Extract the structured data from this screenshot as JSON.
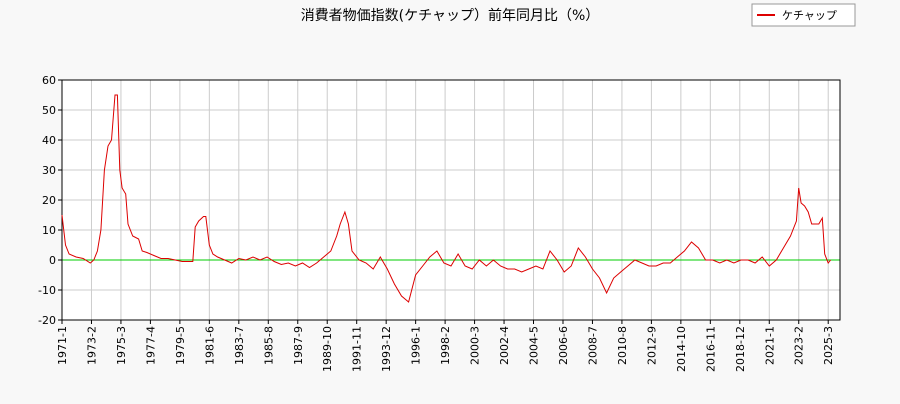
{
  "chart_data": {
    "type": "line",
    "title": "消費者物価指数(ケチャップ）前年同月比（%）",
    "x": [
      "1971-1",
      "1971-4",
      "1971-7",
      "1972-1",
      "1972-7",
      "1973-1",
      "1973-4",
      "1973-7",
      "1973-10",
      "1974-1",
      "1974-4",
      "1974-7",
      "1974-10",
      "1974-12",
      "1975-2",
      "1975-4",
      "1975-7",
      "1975-9",
      "1976-1",
      "1976-6",
      "1976-9",
      "1977-1",
      "1977-7",
      "1978-1",
      "1978-7",
      "1979-1",
      "1979-7",
      "1980-1",
      "1980-4",
      "1980-6",
      "1980-9",
      "1981-1",
      "1981-3",
      "1981-6",
      "1981-9",
      "1982-1",
      "1982-7",
      "1983-1",
      "1983-7",
      "1984-1",
      "1984-7",
      "1985-1",
      "1985-7",
      "1986-1",
      "1986-7",
      "1987-1",
      "1987-7",
      "1988-1",
      "1988-7",
      "1989-1",
      "1989-7",
      "1990-1",
      "1990-6",
      "1990-9",
      "1991-1",
      "1991-4",
      "1991-7",
      "1992-1",
      "1992-7",
      "1993-1",
      "1993-7",
      "1994-1",
      "1994-7",
      "1995-1",
      "1995-7",
      "1996-1",
      "1996-7",
      "1997-1",
      "1997-7",
      "1998-1",
      "1998-7",
      "1999-1",
      "1999-7",
      "2000-1",
      "2000-7",
      "2001-1",
      "2001-7",
      "2002-1",
      "2002-7",
      "2003-1",
      "2003-7",
      "2004-1",
      "2004-7",
      "2005-1",
      "2005-7",
      "2006-1",
      "2006-7",
      "2007-1",
      "2007-7",
      "2008-1",
      "2008-7",
      "2009-1",
      "2009-7",
      "2010-1",
      "2010-7",
      "2011-1",
      "2011-7",
      "2012-1",
      "2012-7",
      "2013-1",
      "2013-7",
      "2014-1",
      "2014-7",
      "2015-1",
      "2015-7",
      "2016-1",
      "2016-7",
      "2017-1",
      "2017-7",
      "2018-1",
      "2018-7",
      "2019-1",
      "2019-7",
      "2020-1",
      "2020-7",
      "2021-1",
      "2021-7",
      "2022-1",
      "2022-7",
      "2022-12",
      "2023-2",
      "2023-4",
      "2023-7",
      "2023-10",
      "2024-1",
      "2024-7",
      "2024-10",
      "2024-12",
      "2025-3",
      "2025-5"
    ],
    "series": [
      {
        "name": "ケチャップ",
        "color": "#dd0000",
        "values": [
          15,
          5,
          2,
          1,
          0.5,
          -1,
          0,
          3,
          10,
          30,
          38,
          40,
          55,
          55,
          30,
          24,
          22,
          12,
          8,
          7,
          3,
          2.5,
          1.5,
          0.5,
          0.5,
          0,
          -0.5,
          -0.5,
          -0.5,
          11,
          13,
          14.5,
          14.5,
          5,
          2,
          1,
          0,
          -1,
          0.5,
          0,
          1,
          0,
          1,
          -0.5,
          -1.5,
          -1,
          -2,
          -1,
          -2.5,
          -1,
          1,
          3,
          8,
          12,
          16,
          12,
          3,
          0,
          -1,
          -3,
          1,
          -3,
          -8,
          -12,
          -14,
          -5,
          -2,
          1,
          3,
          -1,
          -2,
          2,
          -2,
          -3,
          0,
          -2,
          0,
          -2,
          -3,
          -3,
          -4,
          -3,
          -2,
          -3,
          3,
          0,
          -4,
          -2,
          4,
          1,
          -3,
          -6,
          -11,
          -6,
          -4,
          -2,
          0,
          -1,
          -2,
          -2,
          -1,
          -1,
          1,
          3,
          6,
          4,
          0,
          0,
          -1,
          0,
          -1,
          0,
          0,
          -1,
          1,
          -2,
          0,
          4,
          8,
          13,
          24,
          19,
          18,
          16,
          12,
          12,
          14,
          2,
          -1,
          0
        ]
      }
    ],
    "xlim": [
      "1971-1",
      "2026-1"
    ],
    "xticks": [
      "1971-1",
      "1973-2",
      "1975-3",
      "1977-4",
      "1979-5",
      "1981-6",
      "1983-7",
      "1985-8",
      "1987-9",
      "1989-10",
      "1991-11",
      "1993-12",
      "1996-1",
      "1998-2",
      "2000-3",
      "2002-4",
      "2004-5",
      "2006-6",
      "2008-7",
      "2010-8",
      "2012-9",
      "2014-10",
      "2016-11",
      "2018-12",
      "2021-1",
      "2023-2",
      "2025-3"
    ],
    "ylim": [
      -20,
      60
    ],
    "yticks": [
      -20,
      -10,
      0,
      10,
      20,
      30,
      40,
      50,
      60
    ],
    "grid": true,
    "zero_line_color": "#00cc00",
    "legend": "upper right"
  }
}
